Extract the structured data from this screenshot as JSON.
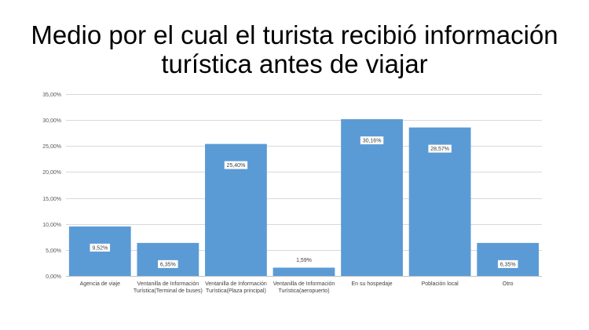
{
  "chart_data": {
    "type": "bar",
    "title_lines": [
      "Medio por el cual el turista recibió información",
      "turística antes de viajar"
    ],
    "categories": [
      [
        "Agencia de viaje"
      ],
      [
        "Ventanilla de Información",
        "Turística(Terminal de buses)"
      ],
      [
        "Ventanilla de Información",
        "Turística(Plaza principal)"
      ],
      [
        "Ventanilla de Información",
        "Turística(aeropuerto)"
      ],
      [
        "En su hospedaje"
      ],
      [
        "Población local"
      ],
      [
        "Otro"
      ]
    ],
    "values": [
      9.52,
      6.35,
      25.4,
      1.59,
      30.16,
      28.57,
      6.35
    ],
    "data_labels": [
      "9,52%",
      "6,35%",
      "25,40%",
      "1,59%",
      "30,16%",
      "28,57%",
      "6,35%"
    ],
    "ylim": [
      0,
      35
    ],
    "yticks": [
      0,
      5,
      10,
      15,
      20,
      25,
      30,
      35
    ],
    "ytick_labels": [
      "0,00%",
      "5,00%",
      "10,00%",
      "15,00%",
      "20,00%",
      "25,00%",
      "30,00%",
      "35,00%"
    ],
    "grid": true,
    "legend": "none",
    "xlabel": "",
    "ylabel": "",
    "bar_color": "#5B9BD5",
    "grid_color": "#D9D9D9"
  }
}
